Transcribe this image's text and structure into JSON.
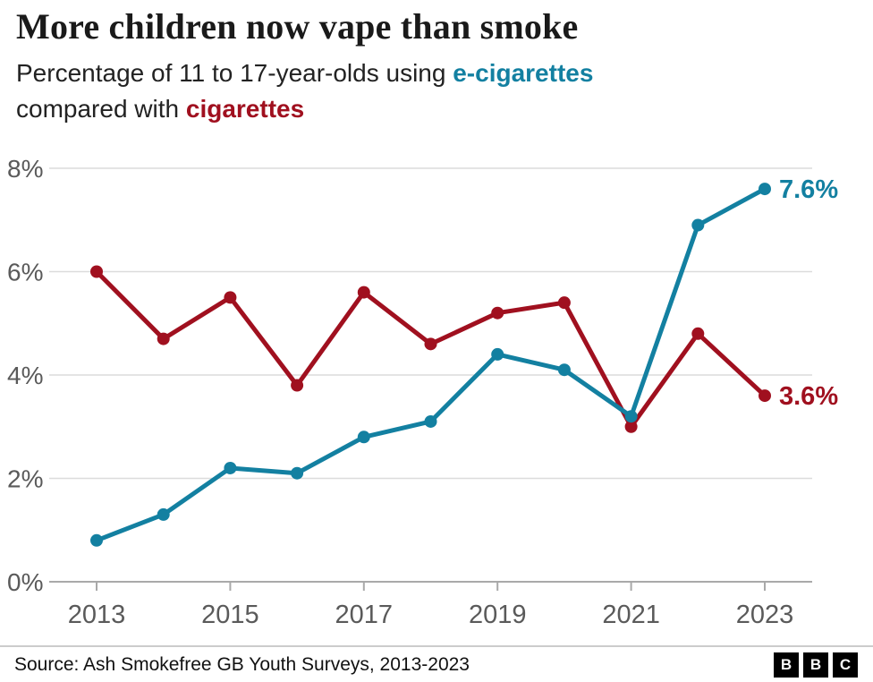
{
  "header": {
    "title": "More children now vape than smoke",
    "subtitle_line1_prefix": "Percentage of 11 to 17-year-olds using ",
    "subtitle_line1_highlight": "e-cigarettes",
    "subtitle_line2_prefix": "compared with ",
    "subtitle_line2_highlight": "cigarettes"
  },
  "colors": {
    "ecigarettes": "#1380A1",
    "cigarettes": "#A0101F",
    "gridline": "#dcdcdc",
    "axis": "#a9a9a9",
    "tick_label": "#5a5a5a"
  },
  "chart_data": {
    "type": "line",
    "title": "More children now vape than smoke",
    "subtitle": "Percentage of 11 to 17-year-olds using e-cigarettes compared with cigarettes",
    "x": [
      2013,
      2014,
      2015,
      2016,
      2017,
      2018,
      2019,
      2020,
      2021,
      2022,
      2023
    ],
    "series": [
      {
        "id": "cigarettes",
        "name": "cigarettes",
        "color_key": "cigarettes",
        "values": [
          6.0,
          4.7,
          5.5,
          3.8,
          5.6,
          4.6,
          5.2,
          5.4,
          3.0,
          4.8,
          3.6
        ],
        "end_label": "3.6%"
      },
      {
        "id": "ecigarettes",
        "name": "e-cigarettes",
        "color_key": "ecigarettes",
        "values": [
          0.8,
          1.3,
          2.2,
          2.1,
          2.8,
          3.1,
          4.4,
          4.1,
          3.2,
          6.9,
          7.6
        ],
        "end_label": "7.6%"
      }
    ],
    "ylim": [
      0,
      8
    ],
    "yticks": [
      0,
      2,
      4,
      6,
      8
    ],
    "ytick_labels": [
      "0%",
      "2%",
      "4%",
      "6%",
      "8%"
    ],
    "xticks": [
      2013,
      2015,
      2017,
      2019,
      2021,
      2023
    ],
    "grid": true,
    "legend": "inline-in-subtitle"
  },
  "footer": {
    "source": "Source: Ash Smokefree GB Youth Surveys, 2013-2023",
    "logo_letters": [
      "B",
      "B",
      "C"
    ]
  }
}
